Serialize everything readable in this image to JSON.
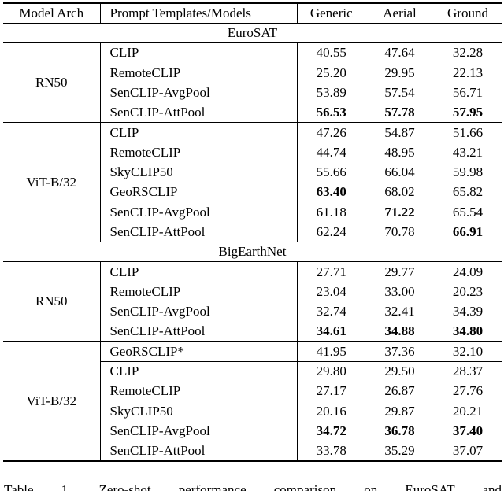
{
  "table": {
    "header": {
      "arch": "Model Arch",
      "models": "Prompt Templates/Models",
      "metrics": [
        "Generic",
        "Aerial",
        "Ground"
      ]
    },
    "sections": [
      {
        "title": "EuroSAT",
        "blocks": [
          {
            "arch": "RN50",
            "rows": [
              {
                "model": "CLIP",
                "values": [
                  "40.55",
                  "47.64",
                  "32.28"
                ],
                "bold": [
                  false,
                  false,
                  false
                ]
              },
              {
                "model": "RemoteCLIP",
                "values": [
                  "25.20",
                  "29.95",
                  "22.13"
                ],
                "bold": [
                  false,
                  false,
                  false
                ]
              },
              {
                "model": "SenCLIP-AvgPool",
                "values": [
                  "53.89",
                  "57.54",
                  "56.71"
                ],
                "bold": [
                  false,
                  false,
                  false
                ]
              },
              {
                "model": "SenCLIP-AttPool",
                "values": [
                  "56.53",
                  "57.78",
                  "57.95"
                ],
                "bold": [
                  true,
                  true,
                  true
                ]
              }
            ]
          },
          {
            "arch": "ViT-B/32",
            "rows": [
              {
                "model": "CLIP",
                "values": [
                  "47.26",
                  "54.87",
                  "51.66"
                ],
                "bold": [
                  false,
                  false,
                  false
                ]
              },
              {
                "model": "RemoteCLIP",
                "values": [
                  "44.74",
                  "48.95",
                  "43.21"
                ],
                "bold": [
                  false,
                  false,
                  false
                ]
              },
              {
                "model": "SkyCLIP50",
                "values": [
                  "55.66",
                  "66.04",
                  "59.98"
                ],
                "bold": [
                  false,
                  false,
                  false
                ]
              },
              {
                "model": "GeoRSCLIP",
                "values": [
                  "63.40",
                  "68.02",
                  "65.82"
                ],
                "bold": [
                  true,
                  false,
                  false
                ]
              },
              {
                "model": "SenCLIP-AvgPool",
                "values": [
                  "61.18",
                  "71.22",
                  "65.54"
                ],
                "bold": [
                  false,
                  true,
                  false
                ]
              },
              {
                "model": "SenCLIP-AttPool",
                "values": [
                  "62.24",
                  "70.78",
                  "66.91"
                ],
                "bold": [
                  false,
                  false,
                  true
                ]
              }
            ]
          }
        ]
      },
      {
        "title": "BigEarthNet",
        "blocks": [
          {
            "arch": "RN50",
            "rows": [
              {
                "model": "CLIP",
                "values": [
                  "27.71",
                  "29.77",
                  "24.09"
                ],
                "bold": [
                  false,
                  false,
                  false
                ]
              },
              {
                "model": "RemoteCLIP",
                "values": [
                  "23.04",
                  "33.00",
                  "20.23"
                ],
                "bold": [
                  false,
                  false,
                  false
                ]
              },
              {
                "model": "SenCLIP-AvgPool",
                "values": [
                  "32.74",
                  "32.41",
                  "34.39"
                ],
                "bold": [
                  false,
                  false,
                  false
                ]
              },
              {
                "model": "SenCLIP-AttPool",
                "values": [
                  "34.61",
                  "34.88",
                  "34.80"
                ],
                "bold": [
                  true,
                  true,
                  true
                ]
              }
            ]
          },
          {
            "arch": "ViT-B/32",
            "rows": [
              {
                "model": "GeoRSCLIP*",
                "values": [
                  "41.95",
                  "37.36",
                  "32.10"
                ],
                "bold": [
                  false,
                  false,
                  false
                ],
                "divider_below": true
              },
              {
                "model": "CLIP",
                "values": [
                  "29.80",
                  "29.50",
                  "28.37"
                ],
                "bold": [
                  false,
                  false,
                  false
                ]
              },
              {
                "model": "RemoteCLIP",
                "values": [
                  "27.17",
                  "26.87",
                  "27.76"
                ],
                "bold": [
                  false,
                  false,
                  false
                ]
              },
              {
                "model": "SkyCLIP50",
                "values": [
                  "20.16",
                  "29.87",
                  "20.21"
                ],
                "bold": [
                  false,
                  false,
                  false
                ]
              },
              {
                "model": "SenCLIP-AvgPool",
                "values": [
                  "34.72",
                  "36.78",
                  "37.40"
                ],
                "bold": [
                  true,
                  true,
                  true
                ]
              },
              {
                "model": "SenCLIP-AttPool",
                "values": [
                  "33.78",
                  "35.29",
                  "37.07"
                ],
                "bold": [
                  false,
                  false,
                  false
                ]
              }
            ]
          }
        ]
      }
    ]
  },
  "caption": "Table 1. Zero-shot performance comparison on EuroSAT and"
}
